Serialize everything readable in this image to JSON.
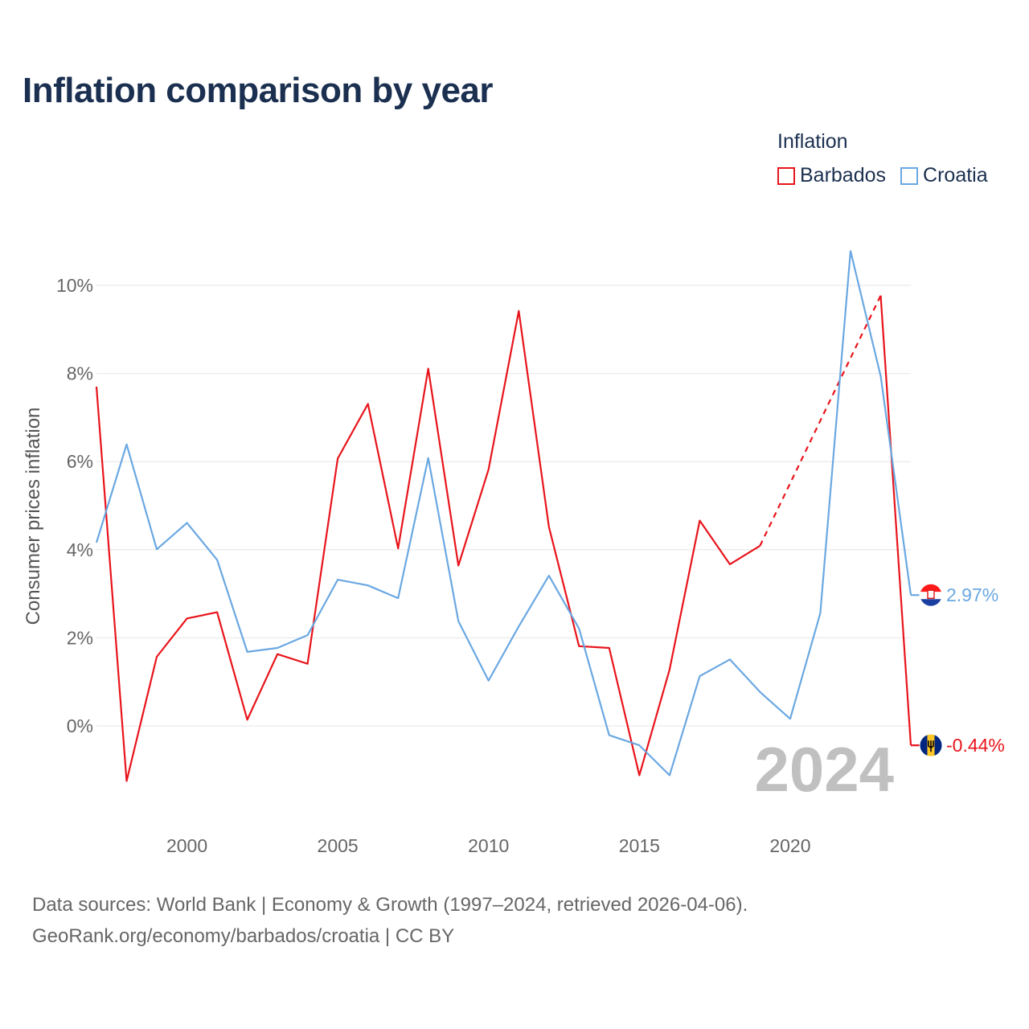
{
  "title": "Inflation comparison by year",
  "legend": {
    "title": "Inflation",
    "items": [
      {
        "label": "Barbados",
        "color": "#e8141b"
      },
      {
        "label": "Croatia",
        "color": "#6aa8e2"
      }
    ]
  },
  "year_label": "2024",
  "footer": {
    "line1": "Data sources: World Bank | Economy & Growth (1997–2024, retrieved 2026-04-06).",
    "line2": "GeoRank.org/economy/barbados/croatia | CC BY"
  },
  "chart_data": {
    "type": "line",
    "title": "Inflation comparison by year",
    "xlabel": "",
    "ylabel": "Consumer prices inflation",
    "xlim": [
      1997,
      2024
    ],
    "ylim": [
      -2,
      11
    ],
    "x_ticks": [
      2000,
      2005,
      2010,
      2015,
      2020
    ],
    "x_tick_labels": [
      "2000",
      "2005",
      "2010",
      "2015",
      "2020"
    ],
    "y_ticks": [
      0,
      2,
      4,
      6,
      8,
      10
    ],
    "y_tick_labels": [
      "0%",
      "2%",
      "4%",
      "6%",
      "8%",
      "10%"
    ],
    "grid": true,
    "series": [
      {
        "name": "Barbados",
        "color": "#e8141b",
        "x": [
          1997,
          1998,
          1999,
          2000,
          2001,
          2002,
          2003,
          2004,
          2005,
          2006,
          2007,
          2008,
          2009,
          2010,
          2011,
          2012,
          2013,
          2014,
          2015,
          2016,
          2017,
          2018,
          2019,
          2023,
          2024
        ],
        "values": [
          7.7,
          -1.25,
          1.57,
          2.44,
          2.58,
          0.14,
          1.63,
          1.41,
          6.07,
          7.31,
          4.03,
          8.11,
          3.64,
          5.82,
          9.42,
          4.52,
          1.81,
          1.77,
          -1.12,
          1.28,
          4.66,
          3.67,
          4.09,
          9.77,
          -0.44
        ],
        "gap": {
          "from": 2019,
          "to": 2023,
          "style": "dashed"
        },
        "end_label": "-0.44%"
      },
      {
        "name": "Croatia",
        "color": "#6aa8e2",
        "x": [
          1997,
          1998,
          1999,
          2000,
          2001,
          2002,
          2003,
          2004,
          2005,
          2006,
          2007,
          2008,
          2009,
          2010,
          2011,
          2012,
          2013,
          2014,
          2015,
          2016,
          2017,
          2018,
          2019,
          2020,
          2021,
          2022,
          2023,
          2024
        ],
        "values": [
          4.16,
          6.39,
          4.01,
          4.61,
          3.77,
          1.68,
          1.77,
          2.06,
          3.32,
          3.19,
          2.9,
          6.08,
          2.38,
          1.03,
          2.26,
          3.41,
          2.21,
          -0.21,
          -0.44,
          -1.12,
          1.13,
          1.51,
          0.77,
          0.16,
          2.56,
          10.78,
          7.94,
          2.97
        ],
        "end_label": "2.97%"
      }
    ]
  }
}
